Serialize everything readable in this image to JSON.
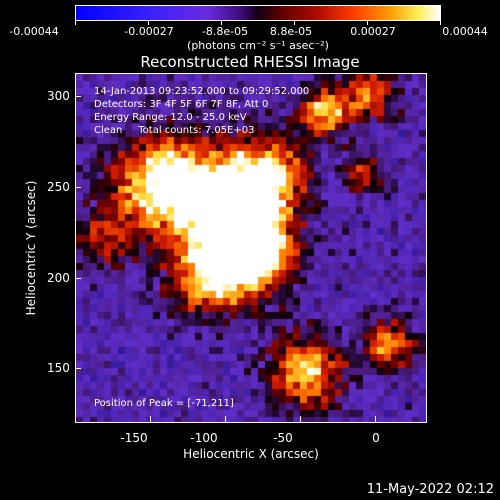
{
  "colorbar": {
    "tick_labels": [
      "-0.00044",
      "-0.00027",
      "-8.8e-05",
      "8.8e-05",
      "0.00027",
      "0.00044"
    ],
    "units_label": "(photons cm⁻² s⁻¹ asec⁻²)",
    "colormap": [
      "#0000ff",
      "#6a2be0",
      "#120010",
      "#aa0a00",
      "#ff9900",
      "#ffffff"
    ]
  },
  "plot": {
    "title": "Reconstructed RHESSI Image",
    "info_lines": [
      "14-Jan-2013 09:23:52.000 to 09:29:52.000",
      "Detectors: 3F 4F 5F 6F 7F 8F, Att 0",
      "Energy Range: 12.0 - 25.0 keV",
      "Clean     Total counts: 7.05E+03"
    ],
    "peak_label": "Position of Peak = [-71,211]",
    "x_axis": {
      "label": "Heliocentric X (arcsec)",
      "ticks": [
        "-150",
        "-100",
        "-50",
        "0"
      ],
      "range": [
        -165,
        25
      ]
    },
    "y_axis": {
      "label": "Heliocentric Y (arcsec)",
      "ticks": [
        "150",
        "200",
        "250",
        "300"
      ],
      "range": [
        117,
        311
      ]
    },
    "peak": {
      "x": -71,
      "y": 211
    }
  },
  "footer": {
    "timestamp": "11-May-2022 02:12"
  }
}
